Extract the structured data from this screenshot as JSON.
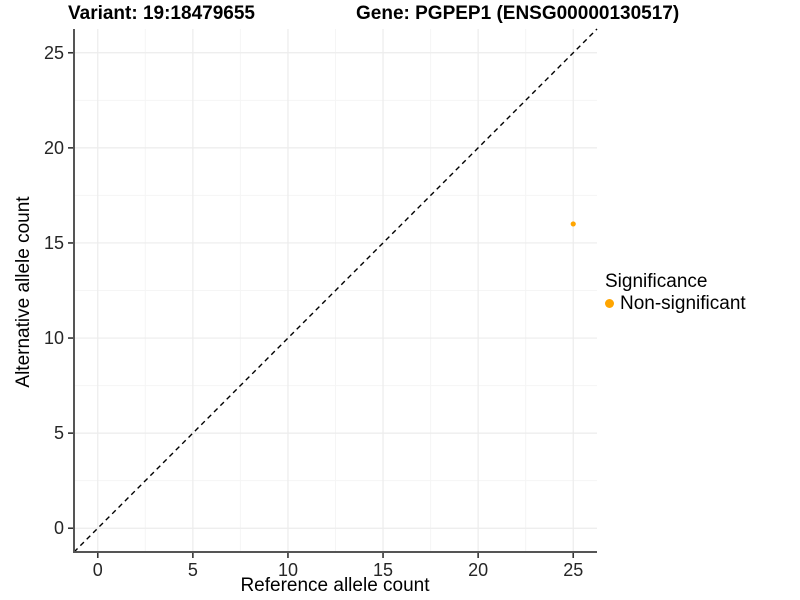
{
  "titles": {
    "variant": "Variant: 19:18479655",
    "gene": "Gene: PGPEP1 (ENSG00000130517)"
  },
  "axes": {
    "x_label": "Reference allele count",
    "y_label": "Alternative allele count"
  },
  "legend": {
    "title": "Significance",
    "items": [
      {
        "label": "Non-significant",
        "color": "#FFA500"
      }
    ]
  },
  "chart_data": {
    "type": "scatter",
    "title": "Variant: 19:18479655   Gene: PGPEP1 (ENSG00000130517)",
    "xlabel": "Reference allele count",
    "ylabel": "Alternative allele count",
    "xlim": [
      -1.25,
      26.25
    ],
    "ylim": [
      -1.25,
      26.25
    ],
    "x_ticks": [
      0,
      5,
      10,
      15,
      20,
      25
    ],
    "y_ticks": [
      0,
      5,
      10,
      15,
      20,
      25
    ],
    "grid": {
      "major": [
        0,
        5,
        10,
        15,
        20,
        25
      ],
      "minor": [
        2.5,
        7.5,
        12.5,
        17.5,
        22.5
      ],
      "major_color": "#ECECEC",
      "minor_color": "#F5F5F5"
    },
    "identity_line": {
      "style": "dashed",
      "from": [
        -1.25,
        -1.25
      ],
      "to": [
        26.25,
        26.25
      ],
      "color": "#000000"
    },
    "series": [
      {
        "name": "Non-significant",
        "color": "#FFA500",
        "points": [
          {
            "x": 25,
            "y": 16
          }
        ]
      }
    ],
    "legend_position": "right",
    "legend_title": "Significance"
  }
}
